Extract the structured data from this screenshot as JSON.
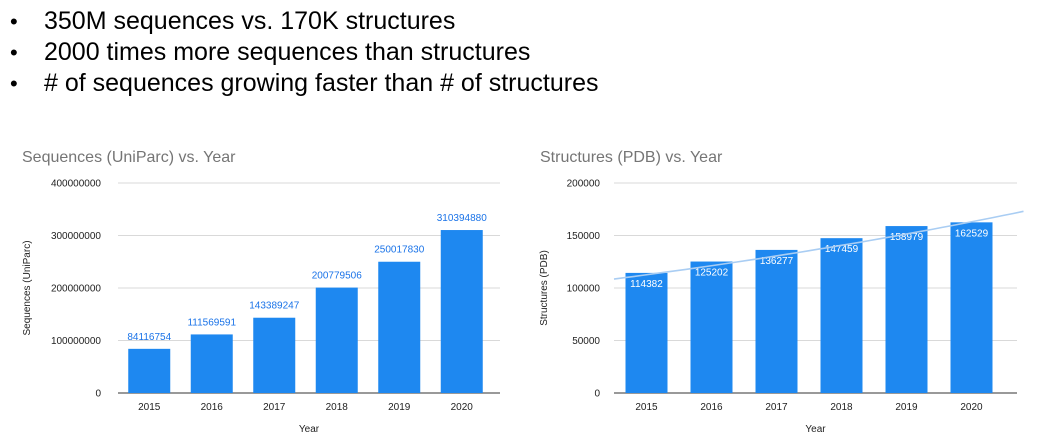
{
  "bullets": [
    "350M sequences vs. 170K structures",
    "2000 times more sequences than structures",
    "# of sequences growing faster than # of structures"
  ],
  "bullet_symbol": "•",
  "colors": {
    "bar": "#1e88f0",
    "grid": "#d9d9d9",
    "trend": "#a9cdf3",
    "title": "#757575",
    "label_outside": "#1a73e8"
  },
  "chart_data": [
    {
      "type": "bar",
      "title": "Sequences (UniParc) vs. Year",
      "xlabel": "Year",
      "ylabel": "Sequences (UniParc)",
      "categories": [
        "2015",
        "2016",
        "2017",
        "2018",
        "2019",
        "2020"
      ],
      "values": [
        84116754,
        111569591,
        143389247,
        200779506,
        250017830,
        310394880
      ],
      "value_labels": [
        "84116754",
        "111569591",
        "143389247",
        "200779506",
        "250017830",
        "310394880"
      ],
      "ylim": [
        0,
        400000000
      ],
      "yticks": [
        "0",
        "100000000",
        "200000000",
        "300000000",
        "400000000"
      ],
      "data_labels": "above",
      "grid": true,
      "legend": "none"
    },
    {
      "type": "bar",
      "title": "Structures (PDB) vs. Year",
      "xlabel": "Year",
      "ylabel": "Structures (PDB)",
      "categories": [
        "2015",
        "2016",
        "2017",
        "2018",
        "2019",
        "2020"
      ],
      "values": [
        114382,
        125202,
        136277,
        147459,
        158979,
        162529
      ],
      "value_labels": [
        "114382",
        "125202",
        "136277",
        "147459",
        "158979",
        "162529"
      ],
      "ylim": [
        0,
        200000
      ],
      "yticks": [
        "0",
        "50000",
        "100000",
        "150000",
        "200000"
      ],
      "data_labels": "inside-top",
      "trendline": {
        "type": "exponential",
        "start": [
          2014.5,
          108500
        ],
        "end": [
          2020.8,
          173000
        ]
      },
      "grid": true,
      "legend": "none"
    }
  ]
}
